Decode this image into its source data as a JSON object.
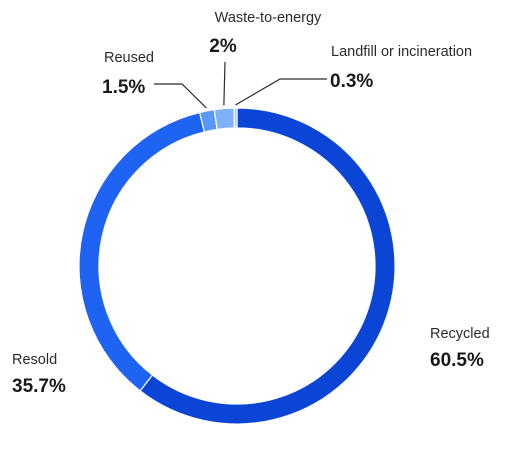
{
  "chart_data": {
    "type": "pie",
    "variant": "donut",
    "title": "",
    "slices": [
      {
        "label": "Recycled",
        "value": 60.5,
        "value_label": "60.5%",
        "color": "#0a45d6"
      },
      {
        "label": "Resold",
        "value": 35.7,
        "value_label": "35.7%",
        "color": "#1f63f2"
      },
      {
        "label": "Reused",
        "value": 1.5,
        "value_label": "1.5%",
        "color": "#5a97f6"
      },
      {
        "label": "Waste-to-energy",
        "value": 2,
        "value_label": "2%",
        "color": "#7fb0fa"
      },
      {
        "label": "Landfill or incineration",
        "value": 0.3,
        "value_label": "0.3%",
        "color": "#a7c9fc"
      }
    ],
    "legend": "none",
    "data_labels": "outside with leader lines"
  }
}
